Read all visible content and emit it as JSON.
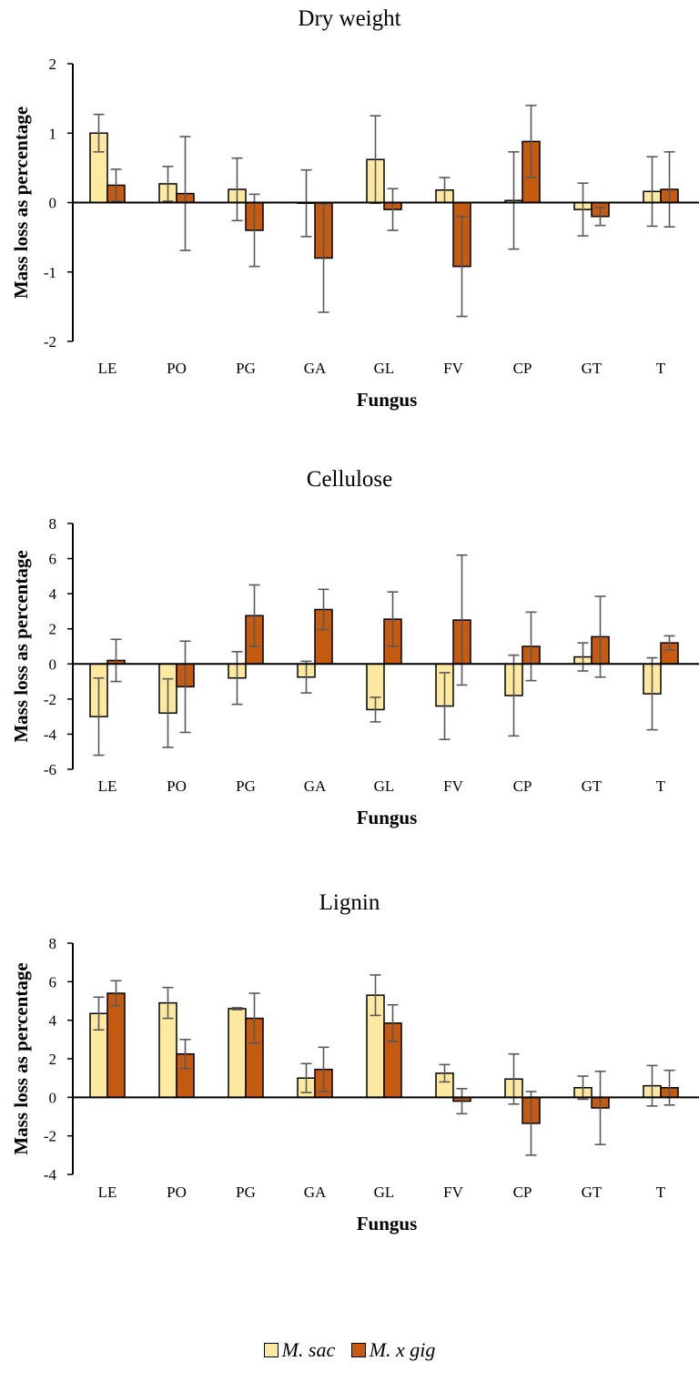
{
  "chart_data": [
    {
      "type": "bar",
      "title": "Dry weight",
      "xlabel": "Fungus",
      "ylabel": "Mass loss as percentage",
      "ylim": [
        -2,
        2
      ],
      "yticks": [
        -2,
        -1,
        0,
        1,
        2
      ],
      "categories": [
        "LE",
        "PO",
        "PG",
        "GA",
        "GL",
        "FV",
        "CP",
        "GT",
        "T"
      ],
      "series": [
        {
          "name": "M. sac",
          "color": "#FFE8A0",
          "values": [
            1.0,
            0.27,
            0.19,
            -0.01,
            0.62,
            0.18,
            0.03,
            -0.1,
            0.16
          ],
          "errors": [
            0.27,
            0.25,
            0.45,
            0.48,
            0.63,
            0.18,
            0.7,
            0.38,
            0.5
          ]
        },
        {
          "name": "M. x gig",
          "color": "#C55A11",
          "values": [
            0.25,
            0.13,
            -0.4,
            -0.8,
            -0.1,
            -0.92,
            0.88,
            -0.2,
            0.19
          ],
          "errors": [
            0.23,
            0.82,
            0.52,
            0.78,
            0.3,
            0.72,
            0.52,
            0.13,
            0.54
          ]
        }
      ]
    },
    {
      "type": "bar",
      "title": "Cellulose",
      "xlabel": "Fungus",
      "ylabel": "Mass loss as percentage",
      "ylim": [
        -6,
        8
      ],
      "yticks": [
        -6,
        -4,
        -2,
        0,
        2,
        4,
        6,
        8
      ],
      "categories": [
        "LE",
        "PO",
        "PG",
        "GA",
        "GL",
        "FV",
        "CP",
        "GT",
        "T"
      ],
      "series": [
        {
          "name": "M. sac",
          "color": "#FFE8A0",
          "values": [
            -3.0,
            -2.8,
            -0.8,
            -0.75,
            -2.6,
            -2.4,
            -1.8,
            0.4,
            -1.7
          ],
          "errors": [
            2.2,
            1.95,
            1.5,
            0.9,
            0.7,
            1.9,
            2.3,
            0.8,
            2.05
          ]
        },
        {
          "name": "M. x gig",
          "color": "#C55A11",
          "values": [
            0.2,
            -1.3,
            2.75,
            3.1,
            2.55,
            2.5,
            1.0,
            1.55,
            1.2
          ],
          "errors": [
            1.2,
            2.6,
            1.75,
            1.15,
            1.55,
            3.7,
            1.95,
            2.3,
            0.4
          ]
        }
      ]
    },
    {
      "type": "bar",
      "title": "Lignin",
      "xlabel": "Fungus",
      "ylabel": "Mass loss as percentage",
      "ylim": [
        -4,
        8
      ],
      "yticks": [
        -4,
        -2,
        0,
        2,
        4,
        6,
        8
      ],
      "categories": [
        "LE",
        "PO",
        "PG",
        "GA",
        "GL",
        "FV",
        "CP",
        "GT",
        "T"
      ],
      "series": [
        {
          "name": "M. sac",
          "color": "#FFE8A0",
          "values": [
            4.35,
            4.9,
            4.6,
            1.0,
            5.3,
            1.25,
            0.95,
            0.5,
            0.6
          ],
          "errors": [
            0.85,
            0.8,
            0.05,
            0.75,
            1.05,
            0.45,
            1.3,
            0.6,
            1.05
          ]
        },
        {
          "name": "M. x gig",
          "color": "#C55A11",
          "values": [
            5.4,
            2.25,
            4.1,
            1.45,
            3.85,
            -0.2,
            -1.35,
            -0.55,
            0.5
          ],
          "errors": [
            0.65,
            0.75,
            1.3,
            1.15,
            0.95,
            0.65,
            1.65,
            1.9,
            0.9
          ]
        }
      ]
    }
  ],
  "legend": {
    "items": [
      {
        "label": "M. sac",
        "color": "#FFE8A0"
      },
      {
        "label": "M. x gig",
        "color": "#C55A11"
      }
    ]
  }
}
